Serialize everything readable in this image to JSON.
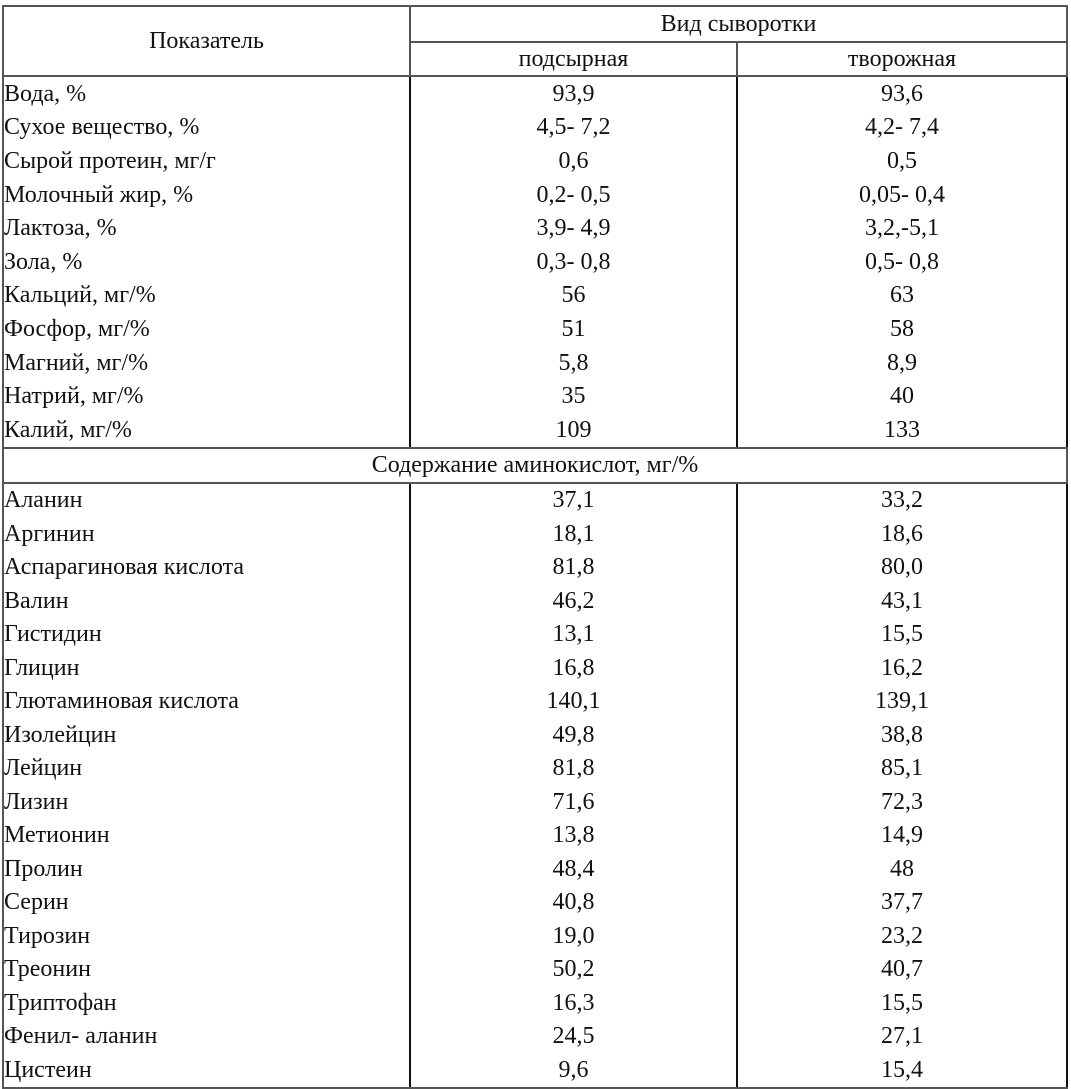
{
  "table": {
    "header": {
      "param_label": "Показатель",
      "group_label": "Вид сыворотки",
      "columns": [
        "подсырная",
        "творожная"
      ]
    },
    "general_rows": [
      {
        "name": "Вода, %",
        "podsyrnaya": "93,9",
        "tvorozhnaya": "93,6"
      },
      {
        "name": "Сухое вещество, %",
        "podsyrnaya": "4,5- 7,2",
        "tvorozhnaya": "4,2- 7,4"
      },
      {
        "name": "Сырой протеин, мг/г",
        "podsyrnaya": "0,6",
        "tvorozhnaya": "0,5"
      },
      {
        "name": "Молочный жир, %",
        "podsyrnaya": "0,2- 0,5",
        "tvorozhnaya": "0,05- 0,4"
      },
      {
        "name": "Лактоза, %",
        "podsyrnaya": "3,9- 4,9",
        "tvorozhnaya": "3,2,-5,1"
      },
      {
        "name": "Зола, %",
        "podsyrnaya": "0,3- 0,8",
        "tvorozhnaya": "0,5- 0,8"
      },
      {
        "name": "Кальций, мг/%",
        "podsyrnaya": "56",
        "tvorozhnaya": "63"
      },
      {
        "name": "Фосфор, мг/%",
        "podsyrnaya": "51",
        "tvorozhnaya": "58"
      },
      {
        "name": "Магний, мг/%",
        "podsyrnaya": "5,8",
        "tvorozhnaya": "8,9"
      },
      {
        "name": "Натрий, мг/%",
        "podsyrnaya": "35",
        "tvorozhnaya": "40"
      },
      {
        "name": "Калий, мг/%",
        "podsyrnaya": "109",
        "tvorozhnaya": "133"
      }
    ],
    "section_label": "Содержание аминокислот, мг/%",
    "amino_rows": [
      {
        "name": "Аланин",
        "podsyrnaya": "37,1",
        "tvorozhnaya": "33,2"
      },
      {
        "name": "Аргинин",
        "podsyrnaya": "18,1",
        "tvorozhnaya": "18,6"
      },
      {
        "name": "Аспарагиновая кислота",
        "podsyrnaya": "81,8",
        "tvorozhnaya": "80,0"
      },
      {
        "name": "Валин",
        "podsyrnaya": "46,2",
        "tvorozhnaya": "43,1"
      },
      {
        "name": "Гистидин",
        "podsyrnaya": "13,1",
        "tvorozhnaya": "15,5"
      },
      {
        "name": "Глицин",
        "podsyrnaya": "16,8",
        "tvorozhnaya": "16,2"
      },
      {
        "name": "Глютаминовая кислота",
        "podsyrnaya": "140,1",
        "tvorozhnaya": "139,1"
      },
      {
        "name": "Изолейцин",
        "podsyrnaya": "49,8",
        "tvorozhnaya": "38,8"
      },
      {
        "name": "Лейцин",
        "podsyrnaya": "81,8",
        "tvorozhnaya": "85,1"
      },
      {
        "name": "Лизин",
        "podsyrnaya": "71,6",
        "tvorozhnaya": "72,3"
      },
      {
        "name": "Метионин",
        "podsyrnaya": "13,8",
        "tvorozhnaya": "14,9"
      },
      {
        "name": "Пролин",
        "podsyrnaya": "48,4",
        "tvorozhnaya": "48"
      },
      {
        "name": "Серин",
        "podsyrnaya": "40,8",
        "tvorozhnaya": "37,7"
      },
      {
        "name": "Тирозин",
        "podsyrnaya": "19,0",
        "tvorozhnaya": "23,2"
      },
      {
        "name": "Треонин",
        "podsyrnaya": "50,2",
        "tvorozhnaya": "40,7"
      },
      {
        "name": "Триптофан",
        "podsyrnaya": "16,3",
        "tvorozhnaya": "15,5"
      },
      {
        "name": "Фенил- аланин",
        "podsyrnaya": "24,5",
        "tvorozhnaya": "27,1"
      },
      {
        "name": "Цистеин",
        "podsyrnaya": "9,6",
        "tvorozhnaya": "15,4"
      }
    ]
  }
}
